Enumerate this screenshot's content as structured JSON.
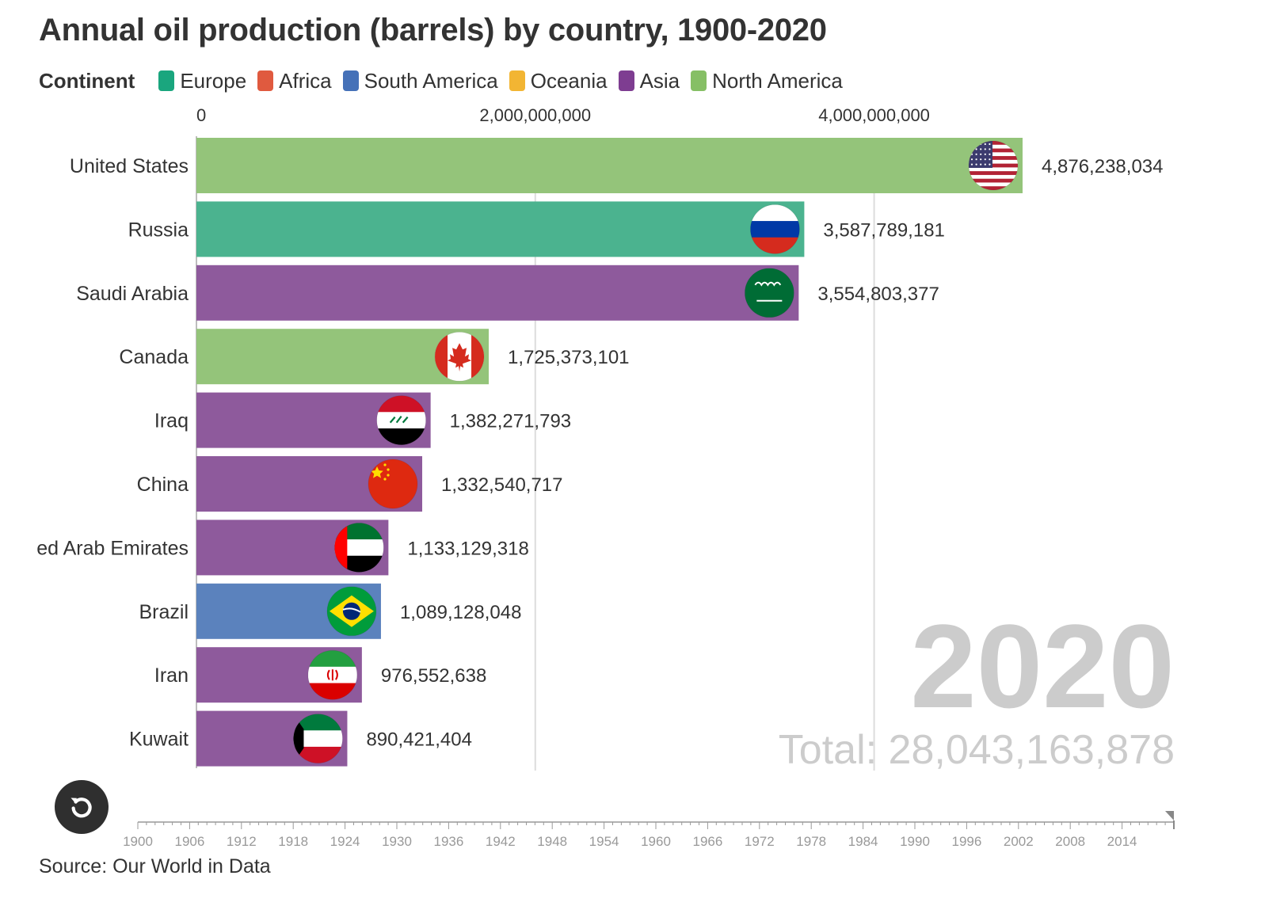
{
  "title": "Annual oil production (barrels) by country, 1900-2020",
  "legend": {
    "title": "Continent",
    "items": [
      {
        "label": "Europe",
        "color": "#1aa67e"
      },
      {
        "label": "Africa",
        "color": "#e05a3f"
      },
      {
        "label": "South America",
        "color": "#4571b8"
      },
      {
        "label": "Oceania",
        "color": "#f2b533"
      },
      {
        "label": "Asia",
        "color": "#7e3d91"
      },
      {
        "label": "North America",
        "color": "#86bf65"
      }
    ]
  },
  "chart_data": {
    "type": "bar",
    "orientation": "horizontal",
    "categories": [
      "United States",
      "Russia",
      "Saudi Arabia",
      "Canada",
      "Iraq",
      "China",
      "United Arab Emirates",
      "Brazil",
      "Iran",
      "Kuwait"
    ],
    "display_labels": [
      "United States",
      "Russia",
      "Saudi Arabia",
      "Canada",
      "Iraq",
      "China",
      "ed Arab Emirates",
      "Brazil",
      "Iran",
      "Kuwait"
    ],
    "values": [
      4876238034,
      3587789181,
      3554803377,
      1725373101,
      1382271793,
      1332540717,
      1133129318,
      1089128048,
      976552638,
      890421404
    ],
    "value_labels": [
      "4,876,238,034",
      "3,587,789,181",
      "3,554,803,377",
      "1,725,373,101",
      "1,382,271,793",
      "1,332,540,717",
      "1,133,129,318",
      "1,089,128,048",
      "976,552,638",
      "890,421,404"
    ],
    "continents": [
      "North America",
      "Europe",
      "Asia",
      "North America",
      "Asia",
      "Asia",
      "Asia",
      "South America",
      "Asia",
      "Asia"
    ],
    "bar_colors": [
      "#94c47a",
      "#4bb38f",
      "#8e5a9c",
      "#94c47a",
      "#8e5a9c",
      "#8e5a9c",
      "#8e5a9c",
      "#5b82bd",
      "#8e5a9c",
      "#8e5a9c"
    ],
    "flag_icons": [
      "us-flag-icon",
      "russia-flag-icon",
      "saudi-arabia-flag-icon",
      "canada-flag-icon",
      "iraq-flag-icon",
      "china-flag-icon",
      "uae-flag-icon",
      "brazil-flag-icon",
      "iran-flag-icon",
      "kuwait-flag-icon"
    ],
    "xlim": [
      0,
      4876238034
    ],
    "x_ticks": [
      0,
      2000000000,
      4000000000
    ],
    "x_tick_labels": [
      "0",
      "2,000,000,000",
      "4,000,000,000"
    ],
    "axis_position": "top",
    "grid": true,
    "legend_position": "top-left",
    "xlabel": "",
    "ylabel": ""
  },
  "year": "2020",
  "total_label": "Total: 28,043,163,878",
  "timeline": {
    "start": 1900,
    "end": 2020,
    "current": 2020,
    "labels": [
      "1900",
      "1906",
      "1912",
      "1918",
      "1924",
      "1930",
      "1936",
      "1942",
      "1948",
      "1954",
      "1960",
      "1966",
      "1972",
      "1978",
      "1984",
      "1990",
      "1996",
      "2002",
      "2008",
      "2014"
    ]
  },
  "replay_icon": "replay-icon",
  "source": "Source: Our World in Data"
}
